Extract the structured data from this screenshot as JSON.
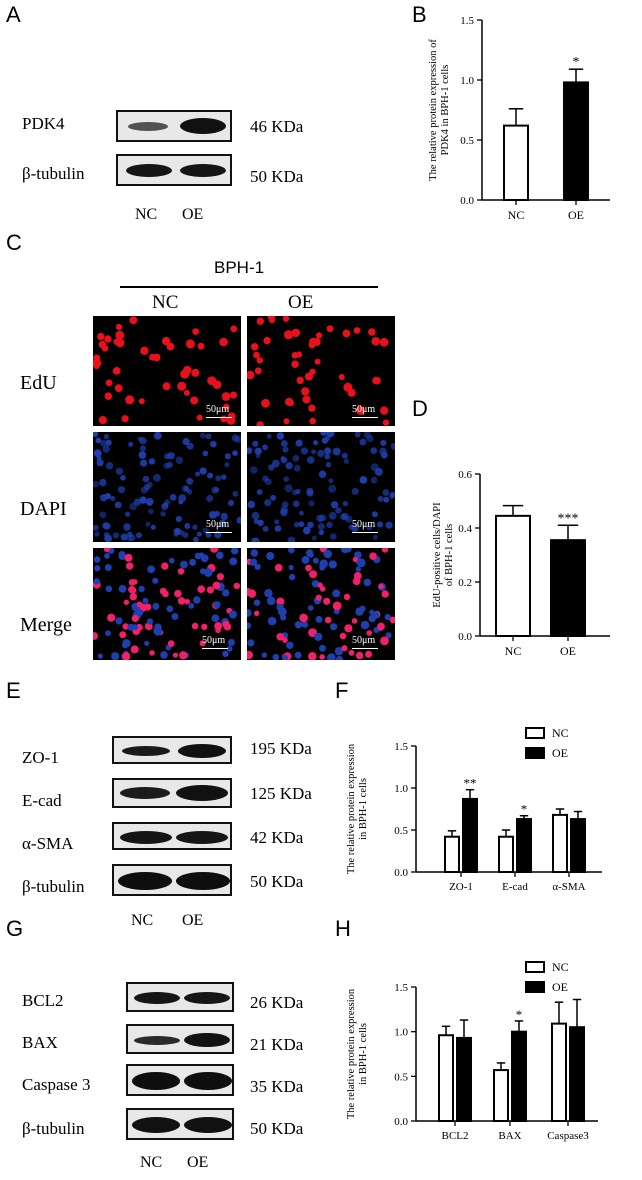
{
  "panels": {
    "a": "A",
    "b": "B",
    "c": "C",
    "d": "D",
    "e": "E",
    "f": "F",
    "g": "G",
    "h": "H"
  },
  "lanes": {
    "nc": "NC",
    "oe": "OE"
  },
  "blot_a": {
    "rows": [
      {
        "label": "PDK4",
        "kda": "46 KDa"
      },
      {
        "label": "β-tubulin",
        "kda": "50 KDa"
      }
    ]
  },
  "blot_e": {
    "rows": [
      {
        "label": "ZO-1",
        "kda": "195 KDa"
      },
      {
        "label": "E-cad",
        "kda": "125 KDa"
      },
      {
        "label": "α-SMA",
        "kda": "42 KDa"
      },
      {
        "label": "β-tubulin",
        "kda": "50 KDa"
      }
    ]
  },
  "blot_g": {
    "rows": [
      {
        "label": "BCL2",
        "kda": "26 KDa"
      },
      {
        "label": "BAX",
        "kda": "21 KDa"
      },
      {
        "label": "Caspase 3",
        "kda": "35 KDa"
      },
      {
        "label": "β-tubulin",
        "kda": "50 KDa"
      }
    ]
  },
  "panel_c": {
    "header": "BPH-1",
    "col_nc": "NC",
    "col_oe": "OE",
    "rows": [
      "EdU",
      "DAPI",
      "Merge"
    ],
    "scale": "50μm",
    "colors": {
      "edu": "#e8101a",
      "dapi": "#1f3fae",
      "merge_red": "#f0206a"
    }
  },
  "chart_data": [
    {
      "panel": "B",
      "type": "bar",
      "categories": [
        "NC",
        "OE"
      ],
      "values": [
        0.62,
        0.98
      ],
      "errors": [
        0.14,
        0.11
      ],
      "fills": [
        "#ffffff",
        "#000000"
      ],
      "significance": [
        "",
        "*"
      ],
      "ylabel_lines": [
        "The relative protein expression of",
        "PDK4 in BPH-1 cells"
      ],
      "ylim": [
        0,
        1.5
      ],
      "yticks": [
        "0.0",
        "0.5",
        "1.0",
        "1.5"
      ]
    },
    {
      "panel": "D",
      "type": "bar",
      "categories": [
        "NC",
        "OE"
      ],
      "values": [
        0.445,
        0.355
      ],
      "errors": [
        0.038,
        0.055
      ],
      "fills": [
        "#ffffff",
        "#000000"
      ],
      "significance": [
        "",
        "***"
      ],
      "ylabel_lines": [
        "EdU-positive cells/DAPI",
        "of BPH-1  cells"
      ],
      "ylim": [
        0,
        0.6
      ],
      "yticks": [
        "0.0",
        "0.2",
        "0.4",
        "0.6"
      ]
    },
    {
      "panel": "F",
      "type": "bar",
      "categories": [
        "ZO-1",
        "E-cad",
        "α-SMA"
      ],
      "series": [
        {
          "name": "NC",
          "values": [
            0.42,
            0.42,
            0.68
          ],
          "errors": [
            0.07,
            0.08,
            0.07
          ]
        },
        {
          "name": "OE",
          "values": [
            0.87,
            0.63,
            0.63
          ],
          "errors": [
            0.11,
            0.04,
            0.09
          ]
        }
      ],
      "significance": [
        "**",
        "*",
        ""
      ],
      "ylabel_lines": [
        "The relative protein expression",
        "in BPH-1 cells"
      ],
      "ylim": [
        0,
        1.5
      ],
      "yticks": [
        "0.0",
        "0.5",
        "1.0",
        "1.5"
      ],
      "legend": "top-right"
    },
    {
      "panel": "H",
      "type": "bar",
      "categories": [
        "BCL2",
        "BAX",
        "Caspase3"
      ],
      "series": [
        {
          "name": "NC",
          "values": [
            0.96,
            0.57,
            1.09
          ],
          "errors": [
            0.1,
            0.08,
            0.24
          ]
        },
        {
          "name": "OE",
          "values": [
            0.93,
            1.0,
            1.05
          ],
          "errors": [
            0.2,
            0.12,
            0.31
          ]
        }
      ],
      "significance": [
        "",
        "*",
        ""
      ],
      "ylabel_lines": [
        "The relative protein expression",
        "in BPH-1 cells"
      ],
      "ylim": [
        0,
        1.5
      ],
      "yticks": [
        "0.0",
        "0.5",
        "1.0",
        "1.5"
      ],
      "legend": "top-right"
    }
  ]
}
